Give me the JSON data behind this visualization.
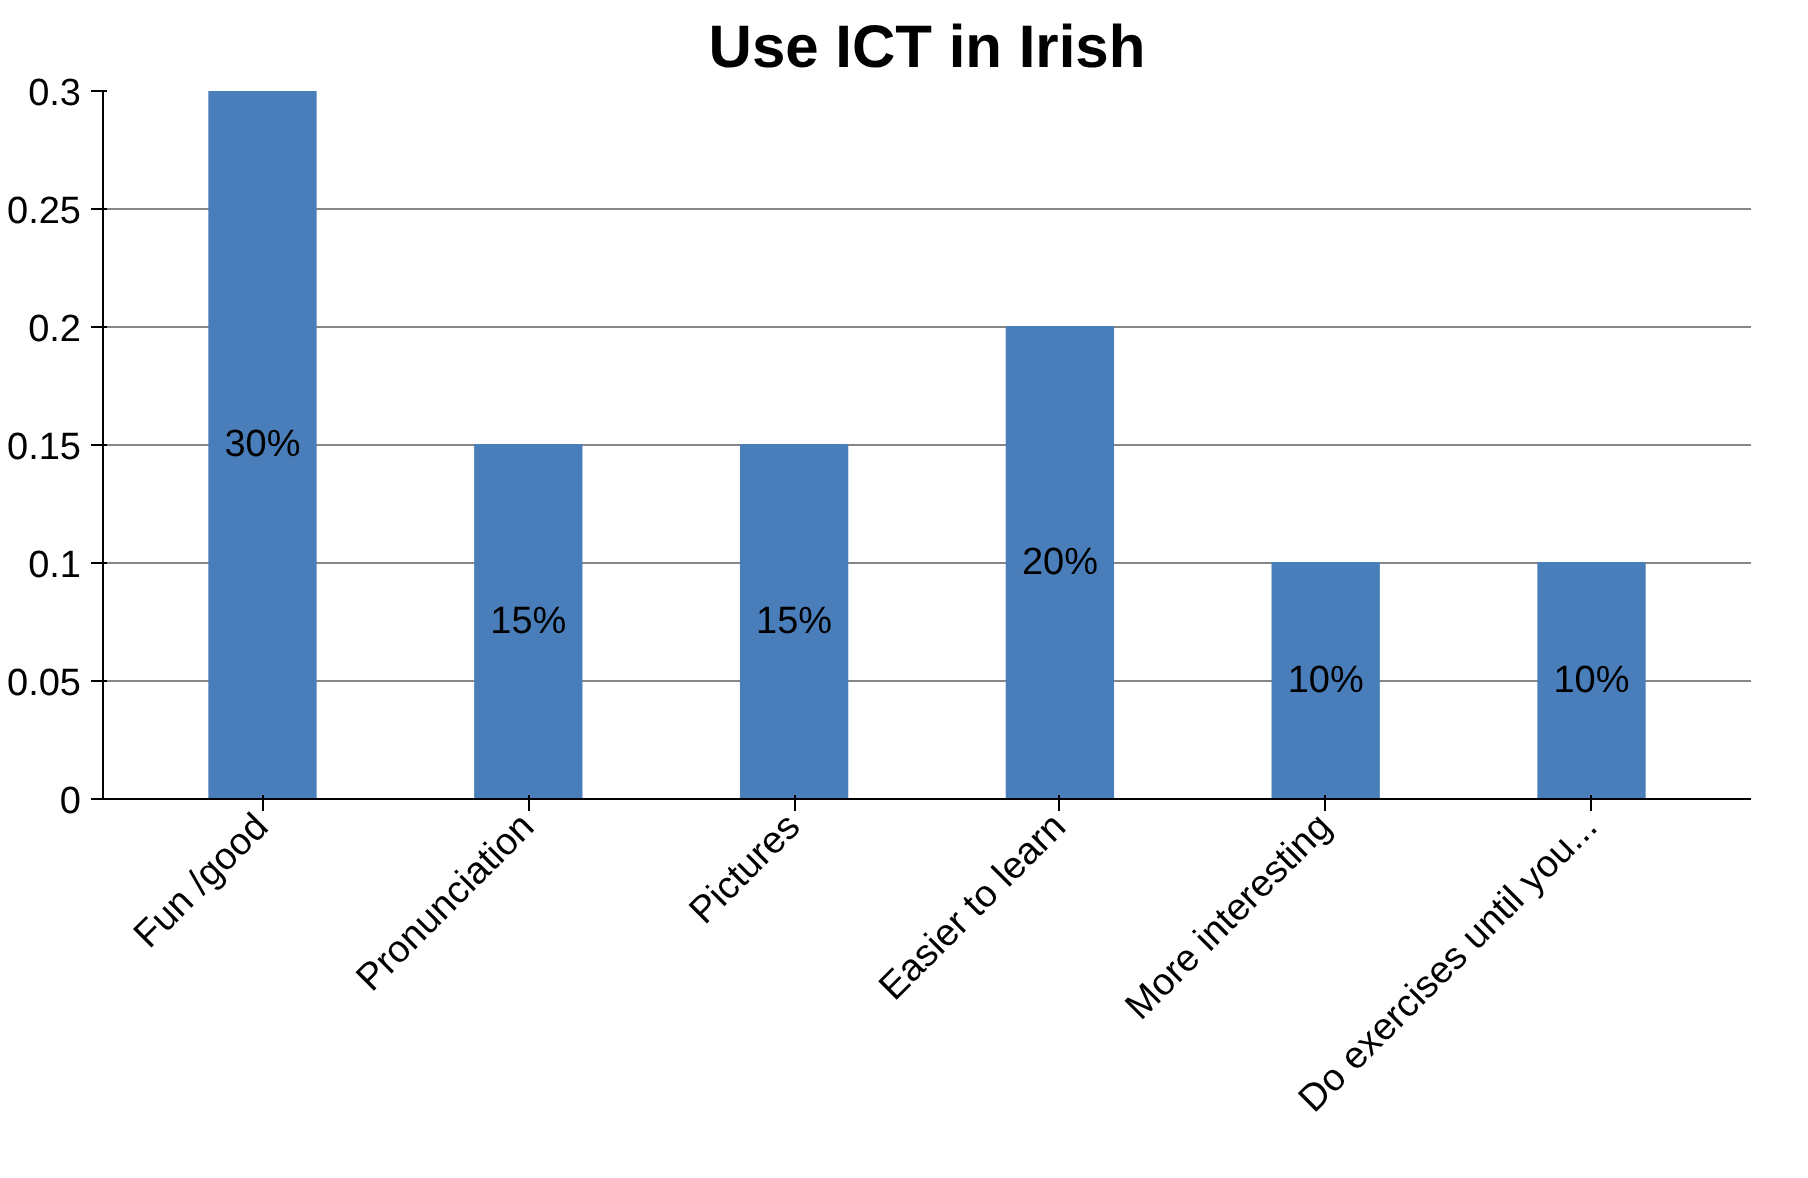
{
  "chart_data": {
    "type": "bar",
    "title": "Use ICT in Irish",
    "categories": [
      "Fun /good",
      "Pronunciation",
      "Pictures",
      "Easier to learn",
      "More interesting",
      "Do exercises until you..."
    ],
    "values": [
      0.3,
      0.15,
      0.15,
      0.2,
      0.1,
      0.1
    ],
    "value_labels": [
      "30%",
      "15%",
      "15%",
      "20%",
      "10%",
      "10%"
    ],
    "color": "#4a7ebb",
    "ylim": [
      0,
      0.3
    ],
    "yticks": [
      0,
      0.05,
      0.1,
      0.15,
      0.2,
      0.25,
      0.3
    ],
    "grid": "y"
  }
}
